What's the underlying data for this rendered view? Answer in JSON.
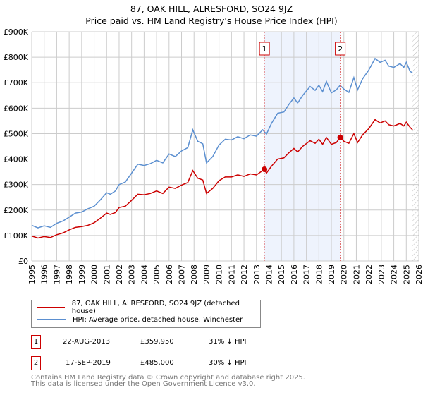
{
  "chart_data": {
    "type": "line",
    "title": "87, OAK HILL, ALRESFORD, SO24 9JZ",
    "subtitle": "Price paid vs. HM Land Registry's House Price Index (HPI)",
    "ylim": [
      0,
      900000
    ],
    "xlim": [
      1995,
      2026
    ],
    "yticks": [
      {
        "v": 0,
        "l": "£0"
      },
      {
        "v": 100000,
        "l": "£100K"
      },
      {
        "v": 200000,
        "l": "£200K"
      },
      {
        "v": 300000,
        "l": "£300K"
      },
      {
        "v": 400000,
        "l": "£400K"
      },
      {
        "v": 500000,
        "l": "£500K"
      },
      {
        "v": 600000,
        "l": "£600K"
      },
      {
        "v": 700000,
        "l": "£700K"
      },
      {
        "v": 800000,
        "l": "£800K"
      },
      {
        "v": 900000,
        "l": "£900K"
      }
    ],
    "xticks": [
      "1995",
      "1996",
      "1997",
      "1998",
      "1999",
      "2000",
      "2001",
      "2002",
      "2003",
      "2004",
      "2005",
      "2006",
      "2007",
      "2008",
      "2009",
      "2010",
      "2011",
      "2012",
      "2013",
      "2014",
      "2015",
      "2016",
      "2017",
      "2018",
      "2019",
      "2020",
      "2021",
      "2022",
      "2023",
      "2024",
      "2025",
      "2026"
    ],
    "series": [
      {
        "name": "87, OAK HILL, ALRESFORD, SO24 9JZ (detached house)",
        "color": "#cc0000",
        "x": [
          1995,
          1995.5,
          1996,
          1996.5,
          1997,
          1997.5,
          1998,
          1998.5,
          1999,
          1999.5,
          2000,
          2000.5,
          2001,
          2001.3,
          2001.7,
          2002,
          2002.5,
          2003,
          2003.5,
          2004,
          2004.5,
          2005,
          2005.5,
          2006,
          2006.5,
          2007,
          2007.5,
          2007.9,
          2008.3,
          2008.7,
          2009,
          2009.5,
          2010,
          2010.5,
          2011,
          2011.5,
          2012,
          2012.5,
          2013,
          2013.64,
          2013.8,
          2014.2,
          2014.7,
          2015.2,
          2015.6,
          2016,
          2016.3,
          2016.7,
          2017.3,
          2017.7,
          2018,
          2018.3,
          2018.6,
          2019,
          2019.4,
          2019.71,
          2020,
          2020.4,
          2020.8,
          2021.1,
          2021.5,
          2022,
          2022.5,
          2022.9,
          2023.3,
          2023.6,
          2024,
          2024.5,
          2024.8,
          2025,
          2025.3,
          2025.5
        ],
        "y": [
          98,
          90,
          96,
          92,
          103,
          110,
          122,
          132,
          135,
          140,
          150,
          168,
          188,
          183,
          190,
          210,
          215,
          238,
          262,
          260,
          265,
          275,
          265,
          290,
          285,
          298,
          308,
          355,
          325,
          318,
          265,
          285,
          315,
          330,
          330,
          338,
          332,
          342,
          338,
          359.95,
          345,
          372,
          400,
          405,
          425,
          442,
          428,
          450,
          472,
          462,
          478,
          458,
          485,
          458,
          465,
          485,
          470,
          462,
          500,
          465,
          495,
          520,
          555,
          542,
          550,
          535,
          530,
          540,
          530,
          545,
          525,
          515
        ]
      },
      {
        "name": "HPI: Average price, detached house, Winchester",
        "color": "#5b8fd0",
        "x": [
          1995,
          1995.5,
          1996,
          1996.5,
          1997,
          1997.5,
          1998,
          1998.5,
          1999,
          1999.5,
          2000,
          2000.5,
          2001,
          2001.3,
          2001.7,
          2002,
          2002.5,
          2003,
          2003.5,
          2004,
          2004.5,
          2005,
          2005.5,
          2006,
          2006.5,
          2007,
          2007.5,
          2007.9,
          2008.3,
          2008.7,
          2009,
          2009.5,
          2010,
          2010.5,
          2011,
          2011.5,
          2012,
          2012.5,
          2013,
          2013.5,
          2013.8,
          2014.2,
          2014.7,
          2015.2,
          2015.6,
          2016,
          2016.3,
          2016.7,
          2017.3,
          2017.7,
          2018,
          2018.3,
          2018.6,
          2019,
          2019.4,
          2019.7,
          2020,
          2020.4,
          2020.8,
          2021.1,
          2021.5,
          2022,
          2022.5,
          2022.9,
          2023.3,
          2023.6,
          2024,
          2024.5,
          2024.8,
          2025,
          2025.3,
          2025.5
        ],
        "y": [
          140,
          130,
          138,
          132,
          148,
          157,
          172,
          188,
          192,
          205,
          215,
          240,
          268,
          262,
          275,
          300,
          310,
          345,
          380,
          375,
          382,
          395,
          385,
          420,
          410,
          432,
          445,
          515,
          470,
          460,
          385,
          410,
          455,
          478,
          475,
          488,
          480,
          495,
          490,
          515,
          498,
          540,
          580,
          585,
          615,
          640,
          620,
          650,
          685,
          670,
          690,
          665,
          705,
          660,
          672,
          690,
          675,
          662,
          720,
          672,
          715,
          750,
          795,
          780,
          788,
          765,
          760,
          775,
          760,
          780,
          745,
          738
        ]
      }
    ],
    "markers": [
      {
        "label": "1",
        "x": 2013.64,
        "y": 359950
      },
      {
        "label": "2",
        "x": 2019.71,
        "y": 485000
      }
    ],
    "shaded_range": [
      2013.64,
      2019.71
    ],
    "forecast_hatch_from": 2025.5
  },
  "legend": {
    "items": [
      "87, OAK HILL, ALRESFORD, SO24 9JZ (detached house)",
      "HPI: Average price, detached house, Winchester"
    ]
  },
  "transactions": [
    {
      "num": "1",
      "date": "22-AUG-2013",
      "price": "£359,950",
      "hpi": "31% ↓ HPI"
    },
    {
      "num": "2",
      "date": "17-SEP-2019",
      "price": "£485,000",
      "hpi": "30% ↓ HPI"
    }
  ],
  "footer": [
    "Contains HM Land Registry data © Crown copyright and database right 2025.",
    "This data is licensed under the Open Government Licence v3.0."
  ]
}
